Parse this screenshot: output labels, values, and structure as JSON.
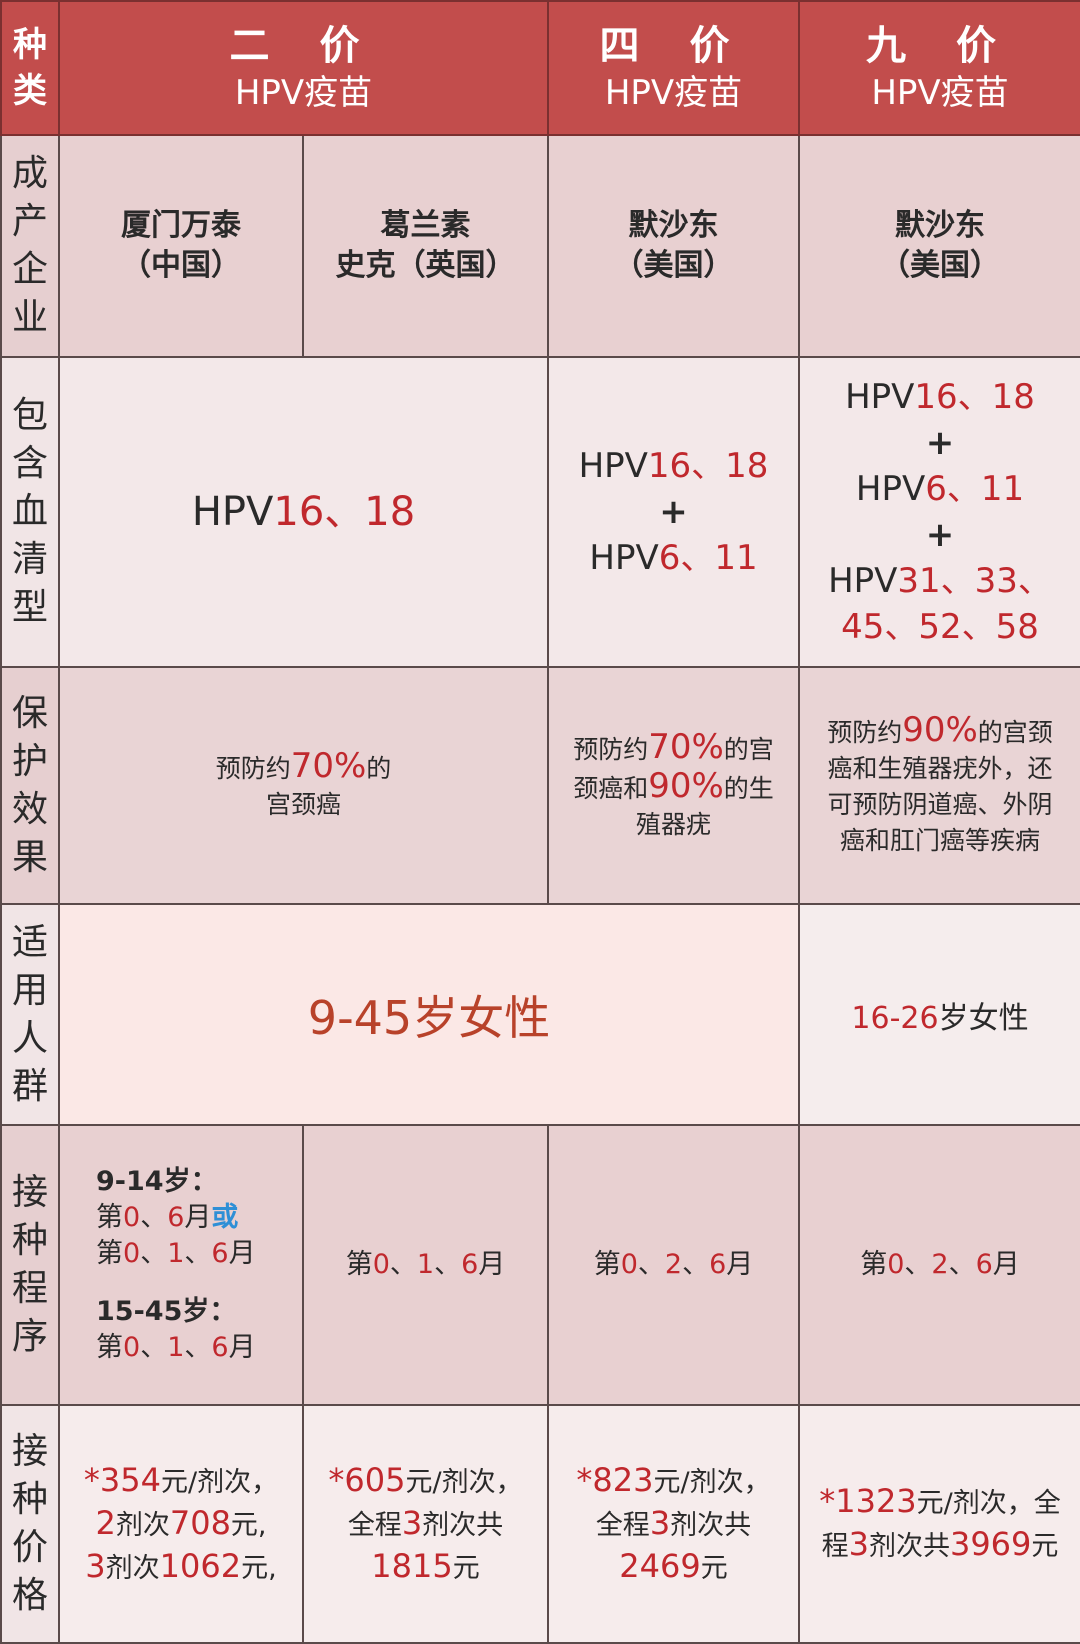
{
  "colors": {
    "header_bg": "#c24d4c",
    "accent_red": "#c0282d",
    "accent_blue": "#2e8fd6",
    "text": "#2a2a2a"
  },
  "header": {
    "label": "种类",
    "bivalent": {
      "title": "二 价",
      "subtitle": "HPV疫苗"
    },
    "quadrivalent": {
      "title": "四 价",
      "subtitle": "HPV疫苗"
    },
    "nonavalent": {
      "title": "九 价",
      "subtitle": "HPV疫苗"
    }
  },
  "rows": {
    "manufacturer": {
      "label": "成产企业",
      "cells": [
        {
          "lines": [
            [
              {
                "t": "厦门万泰"
              }
            ],
            [
              {
                "t": "（中国）"
              }
            ]
          ]
        },
        {
          "lines": [
            [
              {
                "t": "葛兰素"
              }
            ],
            [
              {
                "t": "史克（英国）"
              }
            ]
          ]
        },
        {
          "lines": [
            [
              {
                "t": "默沙东"
              }
            ],
            [
              {
                "t": "（美国）"
              }
            ]
          ]
        },
        {
          "lines": [
            [
              {
                "t": "默沙东"
              }
            ],
            [
              {
                "t": "（美国）"
              }
            ]
          ]
        }
      ]
    },
    "serotypes": {
      "label": "包含血清型",
      "cells": [
        {
          "lines": [
            [
              {
                "t": "HPV"
              },
              {
                "t": "16、18",
                "c": "r"
              }
            ]
          ]
        },
        {
          "lines": [
            [
              {
                "t": "HPV"
              },
              {
                "t": "16、18",
                "c": "r"
              }
            ],
            [
              {
                "t": "+",
                "b": 1
              }
            ],
            [
              {
                "t": "HPV"
              },
              {
                "t": "6、11",
                "c": "r"
              }
            ]
          ]
        },
        {
          "lines": [
            [
              {
                "t": "HPV"
              },
              {
                "t": "16、18",
                "c": "r"
              }
            ],
            [
              {
                "t": "+",
                "b": 1
              }
            ],
            [
              {
                "t": "HPV"
              },
              {
                "t": "6、11",
                "c": "r"
              }
            ],
            [
              {
                "t": "+",
                "b": 1
              }
            ],
            [
              {
                "t": "HPV"
              },
              {
                "t": "31、33、",
                "c": "r"
              }
            ],
            [
              {
                "t": "45、52、58",
                "c": "r"
              }
            ]
          ]
        }
      ]
    },
    "efficacy": {
      "label": "保护效果",
      "cells": [
        {
          "lines": [
            [
              {
                "t": "预防约"
              },
              {
                "t": "70%",
                "c": "r",
                "n": 1
              },
              {
                "t": "的"
              }
            ],
            [
              {
                "t": "宫颈癌"
              }
            ]
          ]
        },
        {
          "lines": [
            [
              {
                "t": "预防约"
              },
              {
                "t": "70%",
                "c": "r",
                "n": 1
              },
              {
                "t": "的宫"
              }
            ],
            [
              {
                "t": "颈癌和"
              },
              {
                "t": "90%",
                "c": "r",
                "n": 1
              },
              {
                "t": "的生"
              }
            ],
            [
              {
                "t": "殖器疣"
              }
            ]
          ]
        },
        {
          "lines": [
            [
              {
                "t": "预防约"
              },
              {
                "t": "90%",
                "c": "r",
                "n": 1
              },
              {
                "t": "的宫颈"
              }
            ],
            [
              {
                "t": "癌和生殖器疣外，还"
              }
            ],
            [
              {
                "t": "可预防阴道癌、外阴"
              }
            ],
            [
              {
                "t": "癌和肛门癌等疾病"
              }
            ]
          ]
        }
      ]
    },
    "population": {
      "label": "适用人群",
      "cells": [
        {
          "lines": [
            [
              {
                "t": "9-45岁女性",
                "c": "o"
              }
            ]
          ]
        },
        {
          "lines": [
            [
              {
                "t": "16-26",
                "c": "r",
                "n": 1
              },
              {
                "t": "岁女性"
              }
            ]
          ]
        }
      ]
    },
    "schedule": {
      "label": "接种程序",
      "cells": [
        {
          "lines": [
            [
              {
                "t": "9-14岁：",
                "b": 1,
                "n": 1
              }
            ],
            [
              {
                "t": "第"
              },
              {
                "t": "0",
                "c": "r"
              },
              {
                "t": "、"
              },
              {
                "t": "6",
                "c": "r"
              },
              {
                "t": "月"
              },
              {
                "t": "或",
                "c": "b",
                "n": 1
              }
            ],
            [
              {
                "t": "第"
              },
              {
                "t": "0",
                "c": "r"
              },
              {
                "t": "、"
              },
              {
                "t": "1",
                "c": "r"
              },
              {
                "t": "、"
              },
              {
                "t": "6",
                "c": "r"
              },
              {
                "t": "月"
              }
            ],
            [],
            [
              {
                "t": "15-45岁：",
                "b": 1,
                "n": 1
              }
            ],
            [
              {
                "t": "第"
              },
              {
                "t": "0",
                "c": "r"
              },
              {
                "t": "、"
              },
              {
                "t": "1",
                "c": "r"
              },
              {
                "t": "、"
              },
              {
                "t": "6",
                "c": "r"
              },
              {
                "t": "月"
              }
            ]
          ]
        },
        {
          "lines": [
            [
              {
                "t": "第"
              },
              {
                "t": "0",
                "c": "r"
              },
              {
                "t": "、"
              },
              {
                "t": "1",
                "c": "r"
              },
              {
                "t": "、"
              },
              {
                "t": "6",
                "c": "r"
              },
              {
                "t": "月"
              }
            ]
          ]
        },
        {
          "lines": [
            [
              {
                "t": "第"
              },
              {
                "t": "0",
                "c": "r"
              },
              {
                "t": "、"
              },
              {
                "t": "2",
                "c": "r"
              },
              {
                "t": "、"
              },
              {
                "t": "6",
                "c": "r"
              },
              {
                "t": "月"
              }
            ]
          ]
        },
        {
          "lines": [
            [
              {
                "t": "第"
              },
              {
                "t": "0",
                "c": "r"
              },
              {
                "t": "、"
              },
              {
                "t": "2",
                "c": "r"
              },
              {
                "t": "、"
              },
              {
                "t": "6",
                "c": "r"
              },
              {
                "t": "月"
              }
            ]
          ]
        }
      ]
    },
    "price": {
      "label": "接种价格",
      "cells": [
        {
          "lines": [
            [
              {
                "t": "*354",
                "c": "r",
                "n": 1
              },
              {
                "t": "元/剂次，"
              }
            ],
            [
              {
                "t": "2",
                "c": "r",
                "n": 1
              },
              {
                "t": "剂次"
              },
              {
                "t": "708",
                "c": "r",
                "n": 1
              },
              {
                "t": "元,"
              }
            ],
            [
              {
                "t": "3",
                "c": "r",
                "n": 1
              },
              {
                "t": "剂次"
              },
              {
                "t": "1062",
                "c": "r",
                "n": 1
              },
              {
                "t": "元,"
              }
            ]
          ]
        },
        {
          "lines": [
            [
              {
                "t": "*605",
                "c": "r",
                "n": 1
              },
              {
                "t": "元/剂次，"
              }
            ],
            [
              {
                "t": "全程"
              },
              {
                "t": "3",
                "c": "r",
                "n": 1
              },
              {
                "t": "剂次共"
              }
            ],
            [
              {
                "t": "1815",
                "c": "r",
                "n": 1
              },
              {
                "t": "元"
              }
            ]
          ]
        },
        {
          "lines": [
            [
              {
                "t": "*823",
                "c": "r",
                "n": 1
              },
              {
                "t": "元/剂次，"
              }
            ],
            [
              {
                "t": "全程"
              },
              {
                "t": "3",
                "c": "r",
                "n": 1
              },
              {
                "t": "剂次共"
              }
            ],
            [
              {
                "t": "2469",
                "c": "r",
                "n": 1
              },
              {
                "t": "元"
              }
            ]
          ]
        },
        {
          "lines": [
            [
              {
                "t": "*1323",
                "c": "r",
                "n": 1
              },
              {
                "t": "元/剂次，全"
              }
            ],
            [
              {
                "t": "程"
              },
              {
                "t": "3",
                "c": "r",
                "n": 1
              },
              {
                "t": "剂次共"
              },
              {
                "t": "3969",
                "c": "r",
                "n": 1
              },
              {
                "t": "元"
              }
            ]
          ]
        }
      ]
    }
  }
}
